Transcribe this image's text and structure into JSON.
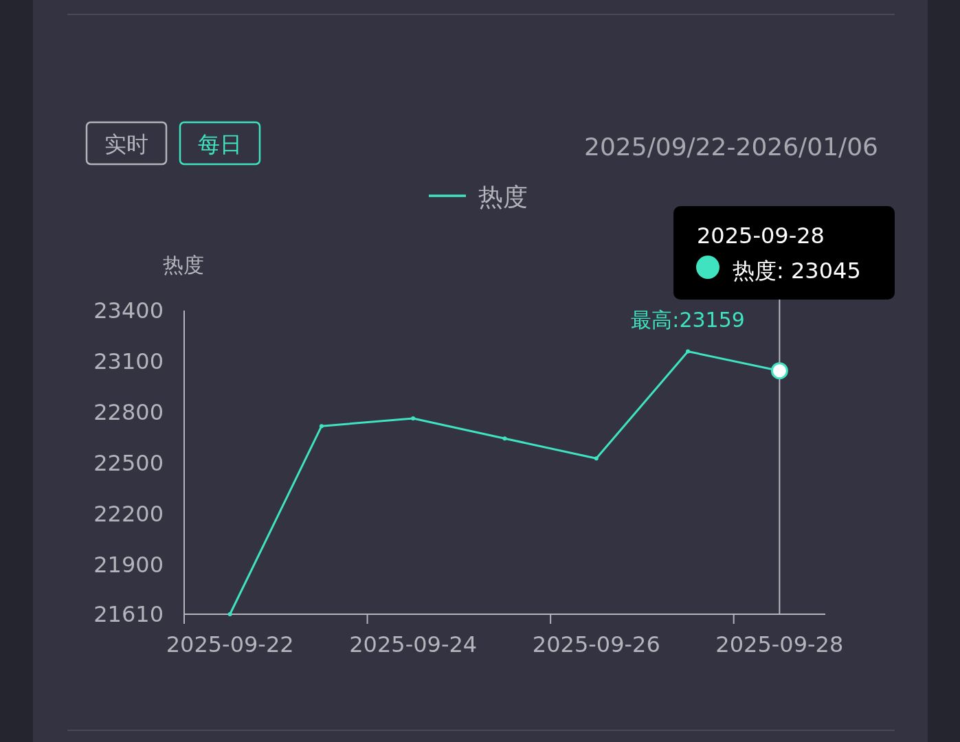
{
  "chart_data": {
    "type": "line",
    "ylabel": "热度",
    "categories": [
      "2025-09-22",
      null,
      "2025-09-24",
      null,
      "2025-09-26",
      null,
      "2025-09-28"
    ],
    "series": [
      {
        "name": "热度",
        "color": "#3fe3bf",
        "values": [
          21610,
          22719,
          22764,
          22646,
          22528,
          23159,
          23045
        ]
      }
    ],
    "ylim": [
      21610,
      23400
    ],
    "yticks": [
      21610,
      21900,
      22200,
      22500,
      22800,
      23100,
      23400
    ],
    "legend": "top",
    "marker": "circle",
    "grid": false,
    "ref_lines": [
      {
        "axis": "x",
        "value": "2025-09-28",
        "color": "#b8b8c0"
      }
    ],
    "annotations": [
      {
        "text": "最高:23159",
        "y": 23159
      },
      "实时",
      "每日",
      "2025/09/22-2026/01/06",
      "2025-09-28",
      "热度: 23045"
    ]
  }
}
